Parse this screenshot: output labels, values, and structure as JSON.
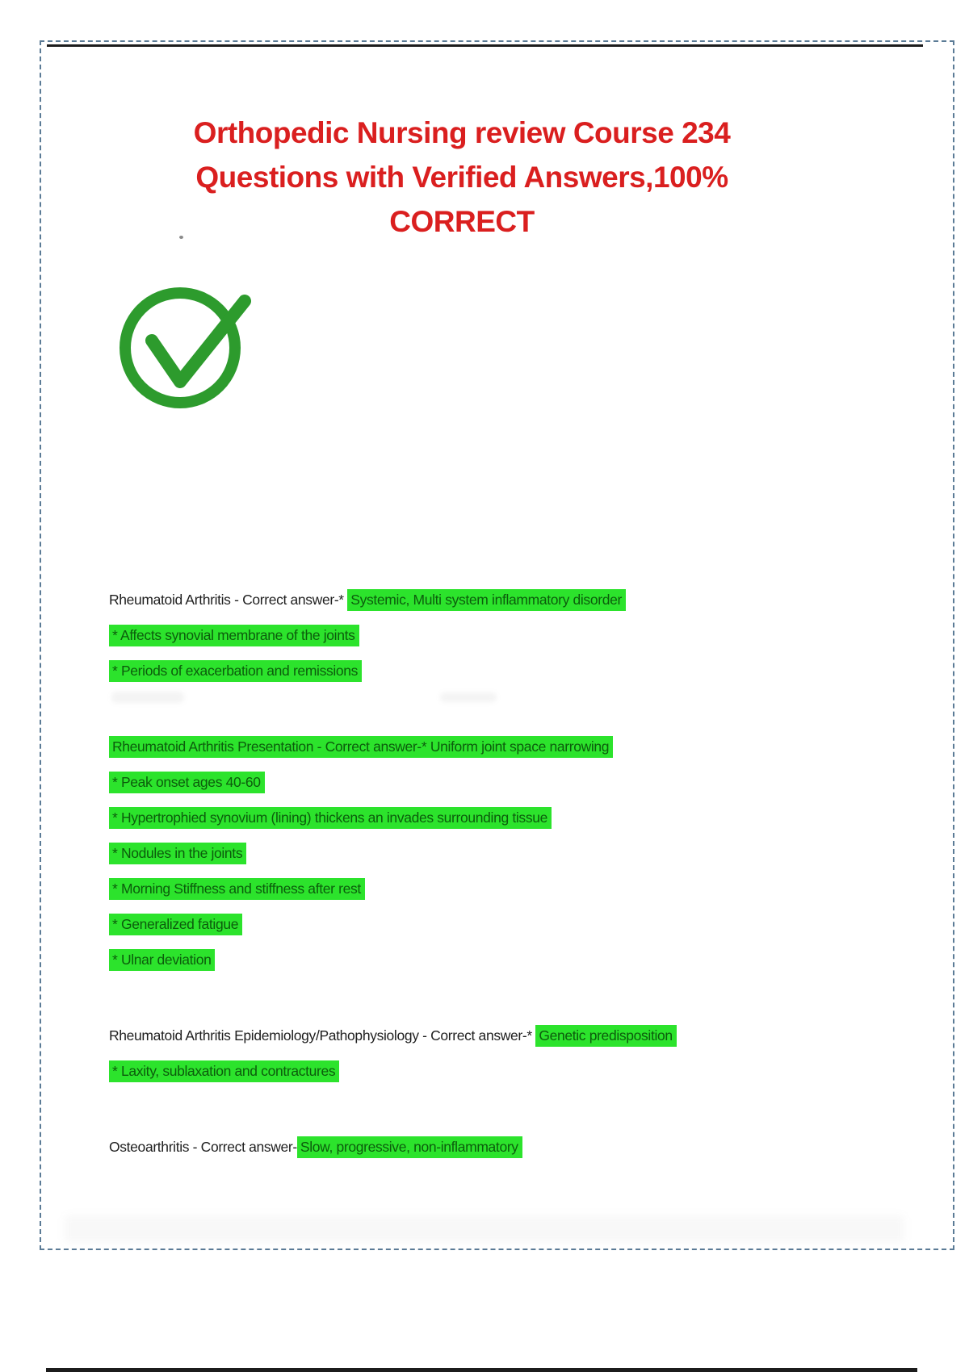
{
  "colors": {
    "title_red": "#da1f1f",
    "highlight_green": "#2ce32c",
    "highlight_text_green": "#0c5c0c",
    "body_ink": "#1f1f1f",
    "border_dash_blue": "#5b7b96",
    "rule_black": "#1c1c1c",
    "check_green": "#2d9b2d"
  },
  "document": {
    "title_lines": [
      "Orthopedic Nursing review Course 234",
      "Questions with Verified Answers,100%",
      "CORRECT"
    ],
    "logo": "green-check-circle-icon"
  },
  "qa_blocks": [
    {
      "lines": [
        {
          "segments": [
            {
              "t": "Rheumatoid Arthritis - Correct answer-* ",
              "hl": false
            },
            {
              "t": "Systemic, Multi system inflammatory disorder",
              "hl": true
            }
          ]
        },
        {
          "segments": [
            {
              "t": "* Affects synovial membrane of the joints",
              "hl": true
            }
          ]
        },
        {
          "segments": [
            {
              "t": "* Periods of exacerbation and remissions",
              "hl": true
            }
          ]
        }
      ]
    },
    {
      "lines": [
        {
          "segments": [
            {
              "t": "Rheumatoid Arthritis Presentation - Correct answer-* Uniform joint space narrowing",
              "hl": true
            }
          ]
        },
        {
          "segments": [
            {
              "t": "* Peak onset ages 40-60",
              "hl": true
            }
          ]
        },
        {
          "segments": [
            {
              "t": "* Hypertrophied synovium (lining) thickens an invades surrounding tissue",
              "hl": true
            }
          ]
        },
        {
          "segments": [
            {
              "t": "* Nodules in the joints",
              "hl": true
            }
          ]
        },
        {
          "segments": [
            {
              "t": "* Morning Stiffness and stiffness after rest",
              "hl": true
            }
          ]
        },
        {
          "segments": [
            {
              "t": "* Generalized fatigue",
              "hl": true
            }
          ]
        },
        {
          "segments": [
            {
              "t": "* Ulnar deviation",
              "hl": true
            }
          ]
        }
      ]
    },
    {
      "lines": [
        {
          "segments": [
            {
              "t": "Rheumatoid Arthritis Epidemiology/Pathophysiology - Correct answer-* ",
              "hl": false
            },
            {
              "t": "Genetic predisposition",
              "hl": true
            }
          ]
        },
        {
          "segments": [
            {
              "t": "* Laxity, sublaxation and contractures",
              "hl": true
            }
          ]
        }
      ]
    },
    {
      "lines": [
        {
          "segments": [
            {
              "t": "Osteoarthritis - Correct answer-",
              "hl": false
            },
            {
              "t": "Slow, progressive, non-inflammatory",
              "hl": true
            }
          ]
        }
      ]
    }
  ]
}
